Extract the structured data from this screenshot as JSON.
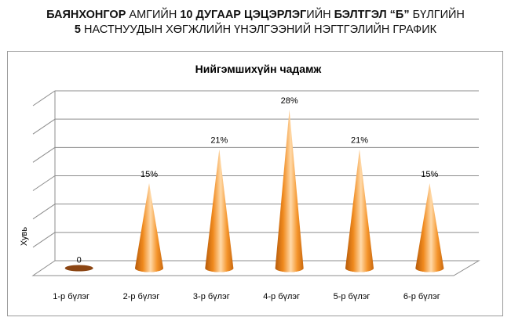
{
  "header": {
    "line1": {
      "part1": "БАЯНХОНГОР",
      "part2": " АМГИЙН ",
      "part3": "10 ДУГААР ЦЭЦЭРЛЭГ",
      "part4": "ИЙН ",
      "part5": "БЭЛТГЭЛ “Б”",
      "part6": " БҮЛГИЙН"
    },
    "line2": {
      "part1": "5",
      "part2": " НАСТНУУДЫН ХӨГЖЛИЙН ҮНЭЛГЭЭНИЙ НЭГТГЭЛИЙН ГРАФИК"
    }
  },
  "chart_data": {
    "type": "bar",
    "style": "3d-cone",
    "title": "Нийгэмшихүйн чадамж",
    "xlabel": "",
    "ylabel": "Хувь",
    "categories": [
      "1-р бүлэг",
      "2-р бүлэг",
      "3-р бүлэг",
      "4-р бүлэг",
      "5-р бүлэг",
      "6-р бүлэг"
    ],
    "values": [
      0,
      15,
      21,
      28,
      21,
      15
    ],
    "data_labels": [
      "0",
      "15%",
      "21%",
      "28%",
      "21%",
      "15%"
    ],
    "ylim": [
      0,
      30
    ],
    "grid": true,
    "legend": "none",
    "colors": {
      "cone": "#F08A1E",
      "cone_dark": "#B55A0A",
      "cone_light": "#FFD9A8",
      "zero_disk": "#8B4513",
      "grid": "#8c8c8c"
    }
  }
}
